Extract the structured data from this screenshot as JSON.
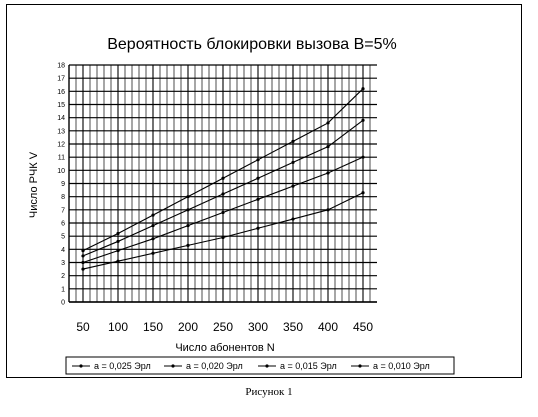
{
  "caption": "Рисунок 1",
  "chart_data": {
    "type": "line",
    "title": "Вероятность блокировки вызова B=5%",
    "xlabel": "Число абонентов N",
    "ylabel": "Число РЧК V",
    "x": [
      50,
      100,
      150,
      200,
      250,
      300,
      350,
      400,
      450
    ],
    "ylim": [
      0,
      18
    ],
    "yticks": [
      0,
      1,
      2,
      3,
      4,
      5,
      6,
      7,
      8,
      9,
      10,
      11,
      12,
      13,
      14,
      15,
      16,
      17,
      18
    ],
    "grid": true,
    "legend_position": "bottom",
    "series": [
      {
        "name": "a = 0,025 Эрл",
        "values": [
          3.9,
          5.2,
          6.6,
          8.0,
          9.4,
          10.8,
          12.2,
          13.6,
          16.2
        ]
      },
      {
        "name": "a = 0,020 Эрл",
        "values": [
          3.5,
          4.6,
          5.8,
          7.0,
          8.2,
          9.4,
          10.6,
          11.8,
          13.8
        ]
      },
      {
        "name": "a = 0,015 Эрл",
        "values": [
          3.0,
          3.9,
          4.8,
          5.8,
          6.8,
          7.8,
          8.8,
          9.8,
          11.0
        ]
      },
      {
        "name": "a = 0,010 Эрл",
        "values": [
          2.5,
          3.1,
          3.7,
          4.3,
          4.9,
          5.6,
          6.3,
          7.0,
          8.3
        ]
      }
    ]
  }
}
